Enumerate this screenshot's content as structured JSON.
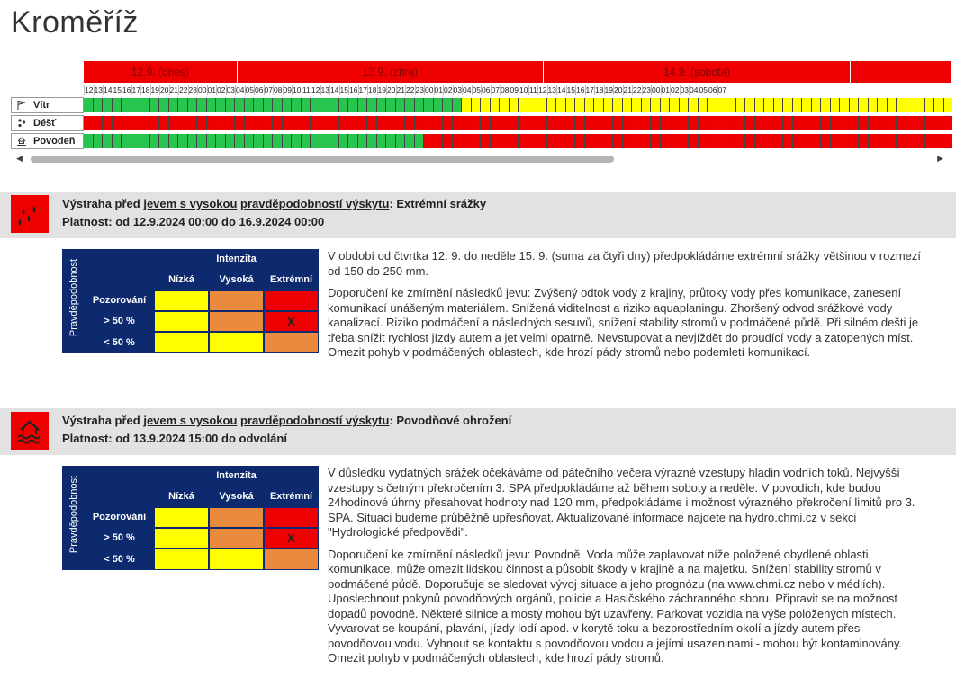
{
  "title": "Kroměříž",
  "timeline": {
    "days": [
      "12.9. (dnes)",
      "13.9. (zítra)",
      "14.9. (sobota)",
      ""
    ],
    "hours": [
      "12",
      "13",
      "14",
      "15",
      "16",
      "17",
      "18",
      "19",
      "20",
      "21",
      "22",
      "23",
      "00",
      "01",
      "02",
      "03",
      "04",
      "05",
      "06",
      "07",
      "08",
      "09",
      "10",
      "11",
      "12",
      "13",
      "14",
      "15",
      "16",
      "17",
      "18",
      "19",
      "20",
      "21",
      "22",
      "23",
      "00",
      "01",
      "02",
      "03",
      "04",
      "05",
      "06",
      "07",
      "08",
      "09",
      "10",
      "11",
      "12",
      "13",
      "14",
      "15",
      "16",
      "17",
      "18",
      "19",
      "20",
      "21",
      "22",
      "23",
      "00",
      "01",
      "02",
      "03",
      "04",
      "05",
      "06",
      "07"
    ],
    "rows": [
      {
        "label": "Vítr",
        "icon": "flag-icon",
        "pattern": "g40y52"
      },
      {
        "label": "Déšť",
        "icon": "raindrops-icon",
        "pattern": "r92"
      },
      {
        "label": "Povodeň",
        "icon": "flood-icon",
        "pattern": "g36r56"
      }
    ],
    "colors": {
      "green": "#29c44f",
      "yellow": "#ffff00",
      "red": "#ee0000"
    }
  },
  "warnings": [
    {
      "prefix": "Výstraha před ",
      "link1": "jevem s vysokou",
      "sep": " ",
      "link2": "pravděpodobností výskytu",
      "suffix": ": Extrémní srážky",
      "validity": "Platnost: od 12.9.2024 00:00 do 16.9.2024 00:00",
      "icon": "heavy-rain-icon",
      "matrix": {
        "side": "Pravděpodobnost",
        "header": "Intenzita",
        "cols": [
          "Nízká",
          "Vysoká",
          "Extrémní"
        ],
        "rows": [
          "Pozorování",
          "> 50 %",
          "< 50 %"
        ],
        "mark": "X"
      },
      "paragraphs": [
        "V období od čtvrtka 12. 9. do neděle 15. 9. (suma za čtyři dny) předpokládáme extrémní srážky většinou v rozmezí od 150 do 250 mm.",
        "Doporučení ke zmírnění následků jevu: Zvýšený odtok vody z krajiny, průtoky vody přes komunikace, zanesení komunikací unášeným materiálem. Snížená viditelnost a riziko aquaplaningu. Zhoršený odvod srážkové vody kanalizací. Riziko podmáčení a následných sesuvů, snížení stability stromů v podmáčené půdě. Při silném dešti je třeba snížit rychlost jízdy autem a jet velmi opatrně. Nevstupovat a nevjíždět do proudící vody a zatopených míst. Omezit pohyb v podmáčených oblastech, kde hrozí pády stromů nebo podemletí komunikací."
      ]
    },
    {
      "prefix": "Výstraha před ",
      "link1": "jevem s vysokou",
      "sep": " ",
      "link2": "pravděpodobností výskytu",
      "suffix": ": Povodňové ohrožení",
      "validity": "Platnost: od 13.9.2024 15:00 do odvolání",
      "icon": "flood-house-icon",
      "matrix": {
        "side": "Pravděpodobnost",
        "header": "Intenzita",
        "cols": [
          "Nízká",
          "Vysoká",
          "Extrémní"
        ],
        "rows": [
          "Pozorování",
          "> 50 %",
          "< 50 %"
        ],
        "mark": "X"
      },
      "paragraphs": [
        "V důsledku vydatných srážek očekáváme od pátečního večera výrazné vzestupy hladin vodních toků. Nejvyšší vzestupy s četným překročením 3. SPA předpokládáme až během soboty a neděle. V povodích, kde budou 24hodinové úhrny přesahovat hodnoty nad 120 mm, předpokládáme i možnost výrazného překročení limitů pro 3. SPA. Situaci budeme průběžně upřesňovat. Aktualizované informace najdete na hydro.chmi.cz v sekci \"Hydrologické předpovědi\".",
        "Doporučení ke zmírnění následků jevu: Povodně. Voda může zaplavovat níže položené obydlené oblasti, komunikace, může omezit lidskou činnost a působit škody v krajině a na majetku. Snížení stability stromů v podmáčené půdě. Doporučuje se sledovat vývoj situace a jeho prognózu (na www.chmi.cz nebo v médiích). Uposlechnout pokynů povodňových orgánů, policie a Hasičského záchranného sboru. Připravit se na možnost dopadů povodně. Některé silnice a mosty mohou být uzavřeny. Parkovat vozidla na výše položených místech. Vyvarovat se koupání, plavání, jízdy lodí apod. v korytě toku a bezprostředním okolí a jízdy autem přes povodňovou vodu. Vyhnout se kontaktu s povodňovou vodou a jejími usazeninami - mohou být kontaminovány. Omezit pohyb v podmáčených oblastech, kde hrozí pády stromů."
      ]
    }
  ]
}
